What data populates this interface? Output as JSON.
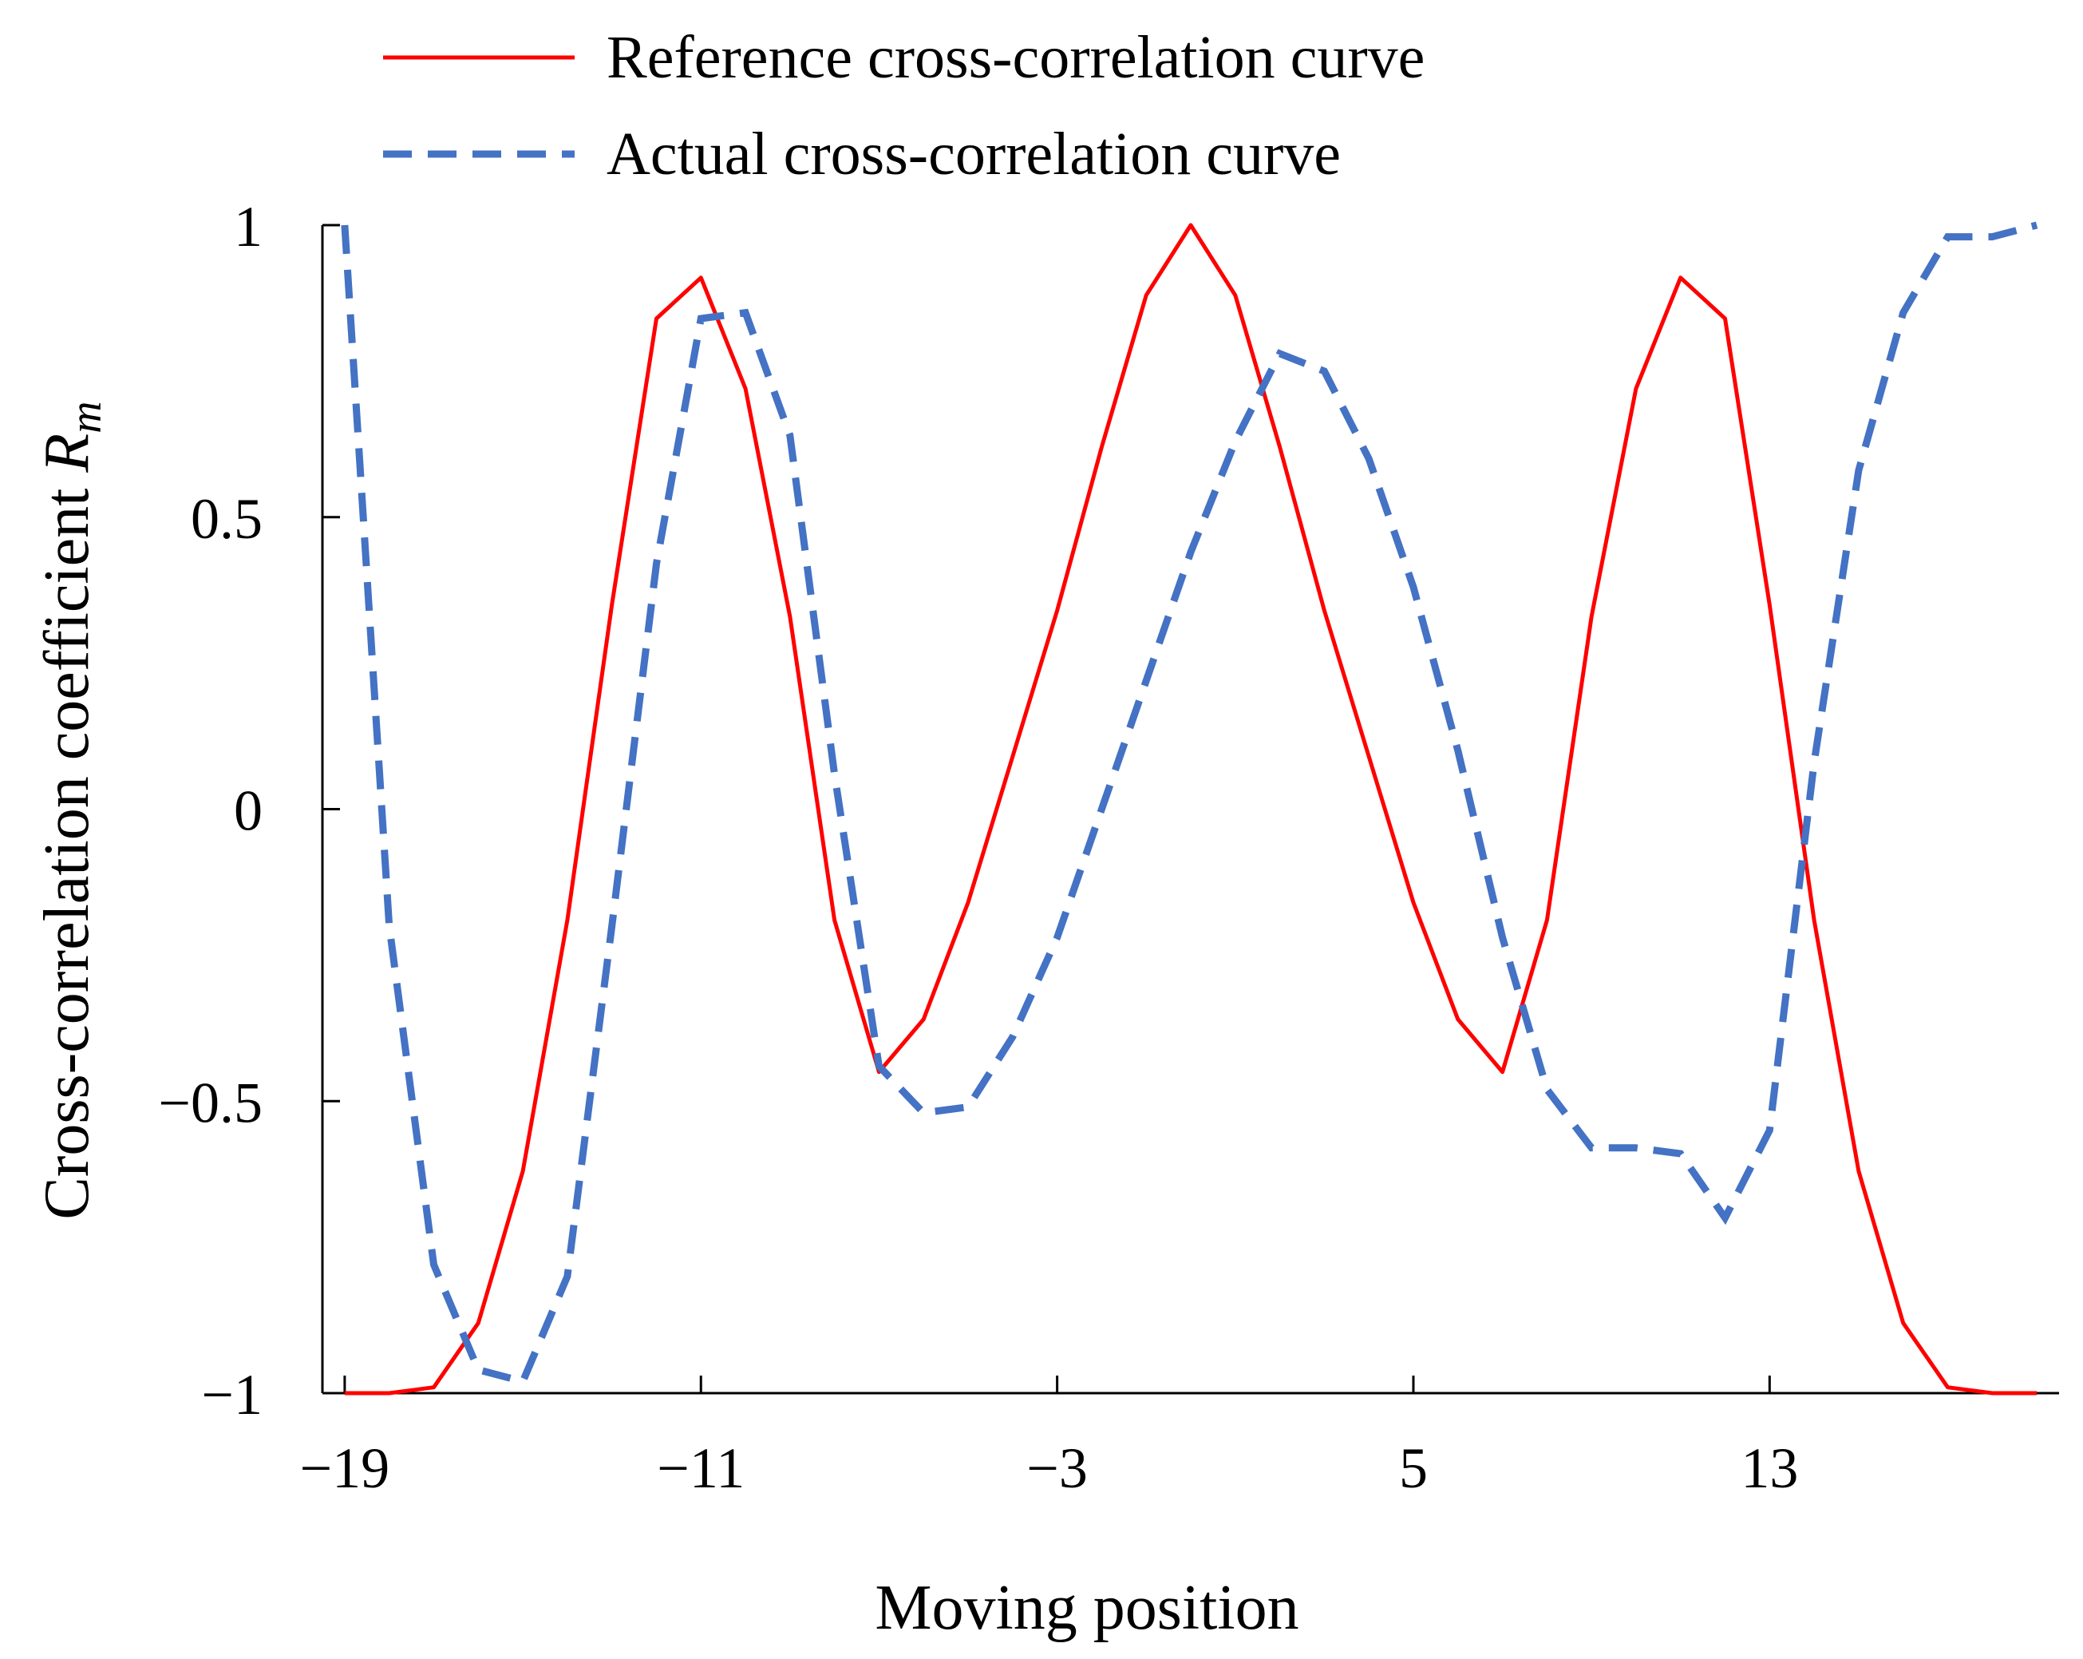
{
  "chart_data": {
    "type": "line",
    "title": "",
    "xlabel": "Moving position",
    "ylabel_prefix": "Cross-correlation coefficient ",
    "ylabel_symbol": "R",
    "ylabel_subscript": "m",
    "xlim": [
      -19.5,
      19.5
    ],
    "ylim": [
      -1,
      1
    ],
    "x_ticks": [
      -19,
      -11,
      -3,
      5,
      13
    ],
    "x_tick_labels": [
      "−19",
      "−11",
      "−3",
      "5",
      "13"
    ],
    "y_ticks": [
      1,
      0.5,
      0,
      -0.5,
      -1
    ],
    "y_tick_labels": [
      "1",
      "0.5",
      "0",
      "−0.5",
      "−1"
    ],
    "grid": false,
    "legend_position": "top",
    "series": [
      {
        "name": "Reference cross-correlation curve",
        "color": "#ff0000",
        "style": "solid",
        "x": [
          -19,
          -18,
          -17,
          -16,
          -15,
          -14,
          -13,
          -12,
          -11,
          -10,
          -9,
          -8,
          -7,
          -6,
          -5,
          -4,
          -3,
          -2,
          -1,
          0,
          1,
          2,
          3,
          4,
          5,
          6,
          7,
          8,
          9,
          10,
          11,
          12,
          13,
          14,
          15,
          16,
          17,
          18,
          19
        ],
        "values": [
          -1,
          -1,
          -0.99,
          -0.88,
          -0.62,
          -0.19,
          0.35,
          0.84,
          0.91,
          0.72,
          0.33,
          -0.19,
          -0.45,
          -0.36,
          -0.16,
          0.09,
          0.34,
          0.62,
          0.88,
          1,
          0.88,
          0.62,
          0.34,
          0.09,
          -0.16,
          -0.36,
          -0.45,
          -0.19,
          0.33,
          0.72,
          0.91,
          0.84,
          0.35,
          -0.19,
          -0.62,
          -0.88,
          -0.99,
          -1,
          -1
        ]
      },
      {
        "name": "Actual cross-correlation curve",
        "color": "#4472c4",
        "style": "dashed",
        "x": [
          -19,
          -18,
          -17,
          -16,
          -15,
          -14,
          -13,
          -12,
          -11,
          -10,
          -9,
          -8,
          -7,
          -6,
          -5,
          -4,
          -3,
          -2,
          -1,
          0,
          1,
          2,
          3,
          4,
          5,
          6,
          7,
          8,
          9,
          10,
          11,
          12,
          13,
          14,
          15,
          16,
          17,
          18,
          19
        ],
        "values": [
          1,
          -0.2,
          -0.78,
          -0.96,
          -0.98,
          -0.8,
          -0.2,
          0.42,
          0.84,
          0.85,
          0.64,
          0.06,
          -0.44,
          -0.52,
          -0.51,
          -0.39,
          -0.22,
          0.0,
          0.22,
          0.44,
          0.63,
          0.78,
          0.75,
          0.6,
          0.38,
          0.1,
          -0.22,
          -0.48,
          -0.58,
          -0.58,
          -0.59,
          -0.7,
          -0.55,
          0.08,
          0.58,
          0.85,
          0.98,
          0.98,
          1
        ]
      }
    ]
  }
}
